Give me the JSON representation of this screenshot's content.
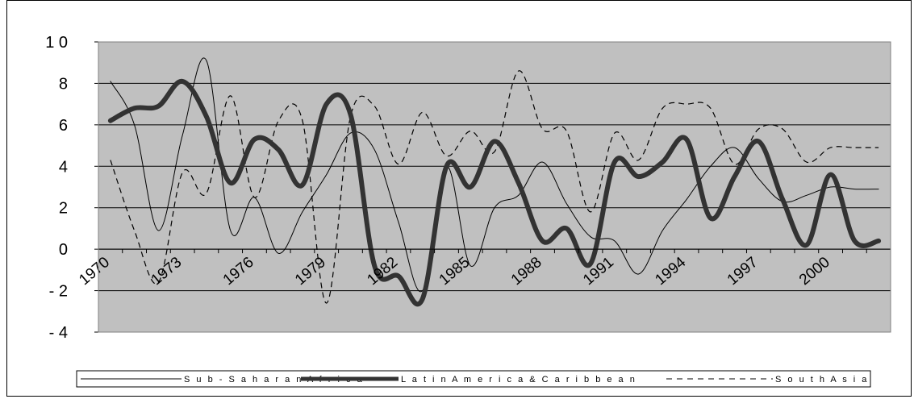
{
  "chart_data": {
    "type": "line",
    "title": "",
    "xlabel": "",
    "ylabel": "",
    "ylim": [
      -4,
      10
    ],
    "ytick_labels": [
      "1 0",
      "8",
      "6",
      "4",
      "2",
      "0",
      "- 2",
      "- 4"
    ],
    "ytick_values": [
      10,
      8,
      6,
      4,
      2,
      0,
      -2,
      -4
    ],
    "xtick_labels": [
      "1970",
      "1973",
      "1976",
      "1979",
      "1982",
      "1985",
      "1988",
      "1991",
      "1994",
      "1997",
      "2000"
    ],
    "x": [
      1970,
      1971,
      1972,
      1973,
      1974,
      1975,
      1976,
      1977,
      1978,
      1979,
      1980,
      1981,
      1982,
      1983,
      1984,
      1985,
      1986,
      1987,
      1988,
      1989,
      1990,
      1991,
      1992,
      1993,
      1994,
      1995,
      1996,
      1997,
      1998,
      1999,
      2000,
      2001,
      2002
    ],
    "grid": true,
    "background": "#c0c0c0",
    "legend_position": "bottom",
    "series": [
      {
        "name": "Sub-Saharan Africa",
        "legend_label": "S u b - S a h a r a n   A f r i c a",
        "style": "thin-solid",
        "values": [
          8.1,
          6.0,
          0.9,
          5.5,
          9.1,
          0.9,
          2.5,
          -0.2,
          1.8,
          3.6,
          5.6,
          4.8,
          1.3,
          -2.0,
          4.0,
          -0.8,
          2.0,
          2.6,
          4.2,
          2.2,
          0.6,
          0.4,
          -1.2,
          0.9,
          2.4,
          4.0,
          4.9,
          3.4,
          2.3,
          2.6,
          3.0,
          2.9,
          2.9
        ],
        "color": "#000000"
      },
      {
        "name": "Latin America & Caribbean",
        "legend_label": "L a t i n   A m e r i c a   &   C a r i b b e a n",
        "style": "thick-solid",
        "values": [
          6.2,
          6.8,
          6.9,
          8.1,
          6.4,
          3.2,
          5.3,
          4.8,
          3.1,
          7.0,
          6.5,
          -0.8,
          -1.3,
          -2.4,
          4.0,
          3.0,
          5.2,
          3.2,
          0.4,
          1.0,
          -0.7,
          4.2,
          3.5,
          4.2,
          5.3,
          1.5,
          3.5,
          5.2,
          2.4,
          0.2,
          3.6,
          0.4,
          0.4
        ],
        "color": "#333333"
      },
      {
        "name": "South Asia",
        "legend_label": "S o u t h   A s i a",
        "style": "dashed",
        "values": [
          4.3,
          0.9,
          -1.6,
          3.7,
          2.7,
          7.4,
          2.5,
          6.2,
          6.2,
          -2.6,
          6.4,
          6.9,
          4.1,
          6.6,
          4.5,
          5.7,
          4.7,
          8.6,
          5.8,
          5.7,
          1.8,
          5.6,
          4.3,
          6.8,
          7.0,
          6.8,
          4.1,
          5.8,
          5.8,
          4.2,
          4.9,
          4.9,
          4.9
        ],
        "color": "#000000"
      }
    ]
  }
}
